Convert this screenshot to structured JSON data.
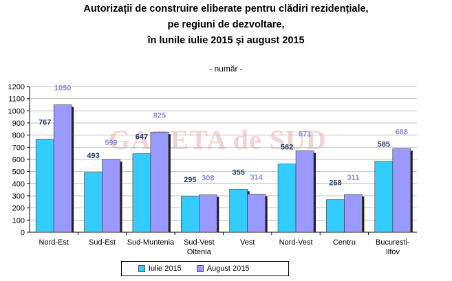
{
  "title_lines": [
    "Autorizații de construire eliberate pentru clădiri rezidențiale,",
    "pe regiuni de dezvoltare,",
    "în lunile iulie 2015 şi august 2015"
  ],
  "subtitle": "- număr -",
  "watermark": "GAZETA de SUD",
  "colors": {
    "series1": "#33ccff",
    "series2": "#9999ff",
    "label1": "#1f3864",
    "label2": "#8f8fd9",
    "grid": "#c0c0c0"
  },
  "chart_data": {
    "type": "bar",
    "categories": [
      "Nord-Est",
      "Sud-Est",
      "Sud-Muntenia",
      "Sud-Vest Oltenia",
      "Vest",
      "Nord-Vest",
      "Centru",
      "Bucuresti-Ilfov"
    ],
    "series": [
      {
        "name": "Iulie 2015",
        "values": [
          767,
          493,
          647,
          295,
          355,
          562,
          268,
          585
        ]
      },
      {
        "name": "August 2015",
        "values": [
          1050,
          599,
          825,
          308,
          314,
          671,
          311,
          688
        ]
      }
    ],
    "ylim": [
      0,
      1200
    ],
    "yticks": [
      0,
      100,
      200,
      300,
      400,
      500,
      600,
      700,
      800,
      900,
      1000,
      1100,
      1200
    ],
    "grid": true,
    "legend_position": "bottom"
  }
}
